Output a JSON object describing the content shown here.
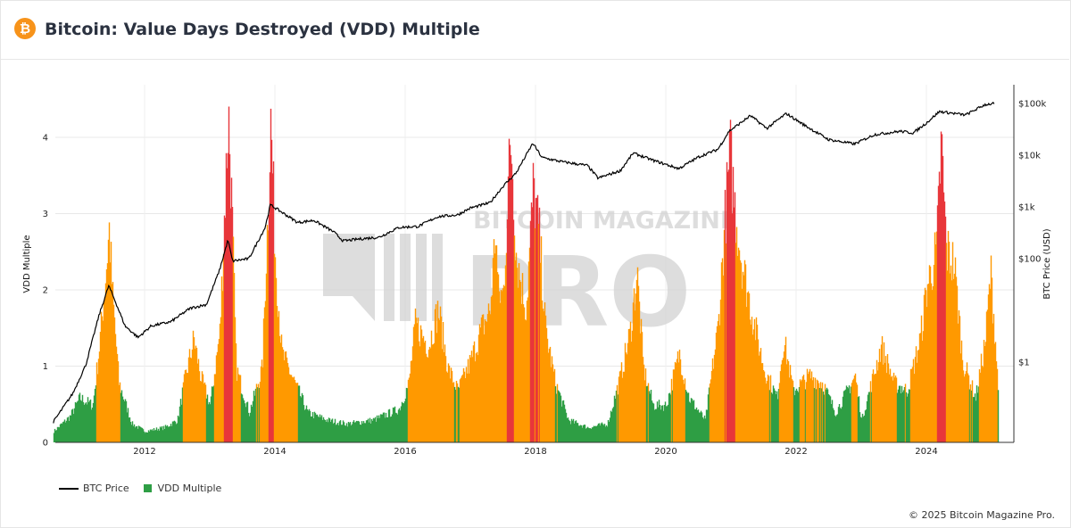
{
  "header": {
    "logo_symbol": "₿",
    "title": "Bitcoin: Value Days Destroyed (VDD) Multiple"
  },
  "watermark": {
    "top": "BITCOIN MAGAZINE",
    "main": "PRO"
  },
  "legend": {
    "price_label": "BTC Price",
    "vdd_label": "VDD Multiple"
  },
  "footer": {
    "copyright": "© 2025 Bitcoin Magazine Pro."
  },
  "colors": {
    "price": "#000000",
    "vdd_low": "#2e9e45",
    "vdd_mid": "#ff9900",
    "vdd_high": "#e8363a",
    "logo": "#f7931a"
  },
  "chart_data": {
    "type": "area",
    "x_ticks": [
      "2012",
      "2014",
      "2016",
      "2018",
      "2020",
      "2022",
      "2024"
    ],
    "y_left": {
      "label": "VDD Multiple",
      "ticks": [
        "0",
        "1",
        "2",
        "3",
        "4"
      ],
      "range": [
        0,
        4.5
      ]
    },
    "y_right": {
      "label": "BTC Price (USD)",
      "scale": "log",
      "ticks": [
        "$1",
        "$100",
        "$1k",
        "$10k",
        "$100k"
      ],
      "range": [
        0.01,
        150000
      ]
    },
    "thresholds": {
      "orange_above": 0.75,
      "red_above": 2.9
    },
    "series": [
      {
        "name": "BTC Price",
        "axis": "right",
        "points": [
          [
            2010.6,
            0.07
          ],
          [
            2010.9,
            0.25
          ],
          [
            2011.1,
            0.9
          ],
          [
            2011.3,
            8
          ],
          [
            2011.45,
            30
          ],
          [
            2011.55,
            15
          ],
          [
            2011.7,
            5
          ],
          [
            2011.9,
            3
          ],
          [
            2012.1,
            5
          ],
          [
            2012.4,
            6
          ],
          [
            2012.7,
            11
          ],
          [
            2012.95,
            13
          ],
          [
            2013.15,
            60
          ],
          [
            2013.28,
            230
          ],
          [
            2013.35,
            90
          ],
          [
            2013.6,
            100
          ],
          [
            2013.85,
            400
          ],
          [
            2013.93,
            1100
          ],
          [
            2014.1,
            800
          ],
          [
            2014.35,
            500
          ],
          [
            2014.6,
            550
          ],
          [
            2014.9,
            330
          ],
          [
            2015.05,
            220
          ],
          [
            2015.3,
            240
          ],
          [
            2015.6,
            260
          ],
          [
            2015.9,
            400
          ],
          [
            2016.2,
            420
          ],
          [
            2016.5,
            650
          ],
          [
            2016.8,
            700
          ],
          [
            2017.0,
            950
          ],
          [
            2017.3,
            1200
          ],
          [
            2017.5,
            2500
          ],
          [
            2017.7,
            4500
          ],
          [
            2017.96,
            17000
          ],
          [
            2018.1,
            9000
          ],
          [
            2018.4,
            7500
          ],
          [
            2018.8,
            6300
          ],
          [
            2018.96,
            3600
          ],
          [
            2019.3,
            5000
          ],
          [
            2019.5,
            11000
          ],
          [
            2019.8,
            8000
          ],
          [
            2020.2,
            5500
          ],
          [
            2020.5,
            9200
          ],
          [
            2020.8,
            13000
          ],
          [
            2020.97,
            29000
          ],
          [
            2021.3,
            58000
          ],
          [
            2021.55,
            33000
          ],
          [
            2021.85,
            64000
          ],
          [
            2022.1,
            40000
          ],
          [
            2022.5,
            20000
          ],
          [
            2022.9,
            16500
          ],
          [
            2023.2,
            25000
          ],
          [
            2023.6,
            29000
          ],
          [
            2023.8,
            27000
          ],
          [
            2024.0,
            42000
          ],
          [
            2024.2,
            70000
          ],
          [
            2024.6,
            60000
          ],
          [
            2024.9,
            95000
          ],
          [
            2025.05,
            100000
          ]
        ]
      },
      {
        "name": "VDD Multiple",
        "axis": "left",
        "points": [
          [
            2010.6,
            0.15
          ],
          [
            2010.85,
            0.35
          ],
          [
            2011.0,
            0.6
          ],
          [
            2011.2,
            0.5
          ],
          [
            2011.3,
            1.3
          ],
          [
            2011.4,
            2.3
          ],
          [
            2011.45,
            2.88
          ],
          [
            2011.5,
            2.0
          ],
          [
            2011.6,
            0.8
          ],
          [
            2011.8,
            0.25
          ],
          [
            2012.0,
            0.15
          ],
          [
            2012.3,
            0.2
          ],
          [
            2012.5,
            0.3
          ],
          [
            2012.6,
            0.8
          ],
          [
            2012.75,
            1.4
          ],
          [
            2012.85,
            0.9
          ],
          [
            2013.0,
            0.5
          ],
          [
            2013.15,
            1.5
          ],
          [
            2013.25,
            3.8
          ],
          [
            2013.28,
            4.45
          ],
          [
            2013.33,
            3.2
          ],
          [
            2013.4,
            1.0
          ],
          [
            2013.6,
            0.4
          ],
          [
            2013.8,
            1.0
          ],
          [
            2013.9,
            3.5
          ],
          [
            2013.93,
            4.35
          ],
          [
            2014.0,
            2.5
          ],
          [
            2014.1,
            1.2
          ],
          [
            2014.3,
            0.8
          ],
          [
            2014.5,
            0.4
          ],
          [
            2014.8,
            0.3
          ],
          [
            2015.1,
            0.25
          ],
          [
            2015.5,
            0.3
          ],
          [
            2015.9,
            0.45
          ],
          [
            2016.05,
            0.8
          ],
          [
            2016.15,
            1.6
          ],
          [
            2016.35,
            1.3
          ],
          [
            2016.5,
            1.8
          ],
          [
            2016.65,
            1.0
          ],
          [
            2016.8,
            0.7
          ],
          [
            2017.0,
            1.1
          ],
          [
            2017.15,
            1.5
          ],
          [
            2017.3,
            1.8
          ],
          [
            2017.38,
            2.9
          ],
          [
            2017.42,
            2.0
          ],
          [
            2017.5,
            2.0
          ],
          [
            2017.58,
            3.6
          ],
          [
            2017.62,
            4.1
          ],
          [
            2017.7,
            2.5
          ],
          [
            2017.85,
            1.8
          ],
          [
            2017.96,
            3.45
          ],
          [
            2018.05,
            2.8
          ],
          [
            2018.15,
            1.5
          ],
          [
            2018.3,
            0.8
          ],
          [
            2018.5,
            0.3
          ],
          [
            2018.8,
            0.2
          ],
          [
            2019.1,
            0.25
          ],
          [
            2019.3,
            0.9
          ],
          [
            2019.45,
            1.5
          ],
          [
            2019.55,
            2.3
          ],
          [
            2019.65,
            1.0
          ],
          [
            2019.8,
            0.5
          ],
          [
            2020.0,
            0.5
          ],
          [
            2020.2,
            1.2
          ],
          [
            2020.35,
            0.6
          ],
          [
            2020.6,
            0.3
          ],
          [
            2020.8,
            1.6
          ],
          [
            2020.9,
            3.0
          ],
          [
            2020.98,
            3.9
          ],
          [
            2021.05,
            3.2
          ],
          [
            2021.15,
            2.5
          ],
          [
            2021.3,
            1.8
          ],
          [
            2021.5,
            1.0
          ],
          [
            2021.7,
            0.6
          ],
          [
            2021.8,
            1.4
          ],
          [
            2021.95,
            0.7
          ],
          [
            2022.2,
            0.9
          ],
          [
            2022.4,
            0.8
          ],
          [
            2022.6,
            0.4
          ],
          [
            2022.9,
            0.9
          ],
          [
            2023.0,
            0.3
          ],
          [
            2023.3,
            1.3
          ],
          [
            2023.5,
            0.8
          ],
          [
            2023.7,
            0.7
          ],
          [
            2023.9,
            1.4
          ],
          [
            2024.0,
            2.1
          ],
          [
            2024.15,
            2.6
          ],
          [
            2024.22,
            4.05
          ],
          [
            2024.3,
            2.6
          ],
          [
            2024.42,
            2.4
          ],
          [
            2024.55,
            1.1
          ],
          [
            2024.75,
            0.6
          ],
          [
            2024.9,
            1.4
          ],
          [
            2024.98,
            2.3
          ],
          [
            2025.05,
            1.4
          ],
          [
            2025.1,
            0.6
          ]
        ]
      }
    ]
  }
}
